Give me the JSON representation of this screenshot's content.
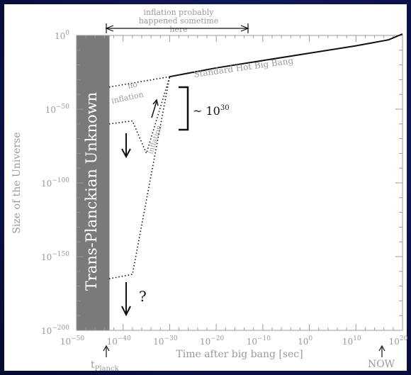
{
  "chart_data": {
    "type": "line",
    "title": "",
    "xlabel": "Time after big bang [sec]",
    "ylabel": "Size of the Universe",
    "xlim": [
      -50,
      20
    ],
    "ylim": [
      -200,
      0
    ],
    "x_scale": "log10",
    "y_scale": "log10",
    "x_ticks": [
      -50,
      -40,
      -30,
      -20,
      -10,
      0,
      10,
      20
    ],
    "y_ticks": [
      0,
      -50,
      -100,
      -150,
      -200
    ],
    "x_tick_labels": [
      "10",
      "10",
      "10",
      "10",
      "10",
      "10",
      "10",
      "10"
    ],
    "x_tick_exponents": [
      "−50",
      "−40",
      "−30",
      "−20",
      "−10",
      "0",
      "10",
      "20"
    ],
    "y_tick_labels": [
      "10",
      "10",
      "10",
      "10",
      "10"
    ],
    "y_tick_exponents": [
      "0",
      "−50",
      "−100",
      "−150",
      "−200"
    ],
    "series": [
      {
        "name": "Standard Hot Big Bang",
        "style": "solid",
        "x": [
          -30,
          -20,
          -10,
          0,
          10,
          17,
          20
        ],
        "y": [
          -28,
          -22,
          -17,
          -12,
          -7,
          -3,
          1
        ]
      },
      {
        "name": "no inflation",
        "style": "dotted",
        "x": [
          -43,
          -30
        ],
        "y": [
          -35,
          -28
        ]
      },
      {
        "name": "inflation",
        "style": "dotted",
        "x": [
          -43,
          -38,
          -35,
          -30
        ],
        "y": [
          -60,
          -58,
          -80,
          -28
        ]
      },
      {
        "name": "",
        "style": "dotted",
        "x": [
          -43,
          -38,
          -30
        ],
        "y": [
          -165,
          -162,
          -28
        ]
      }
    ],
    "shaded_region": {
      "label": "Trans-Planckian Unknown",
      "x_range": [
        -50,
        -43
      ]
    },
    "bracket_label": {
      "text": "~ 10",
      "exponent": "30"
    },
    "top_annotation": {
      "line1": "inflation probably",
      "line2": "happened sometime",
      "line3": "here"
    },
    "question_mark": "?",
    "t_planck": {
      "main": "t",
      "sub": "Planck"
    },
    "now_label": "NOW",
    "colors": {
      "background": "#ffffff",
      "shade": "#7a7a7a",
      "axes": "#9a9a9a",
      "ink": "#111111",
      "text": "#9a9a9a"
    }
  }
}
